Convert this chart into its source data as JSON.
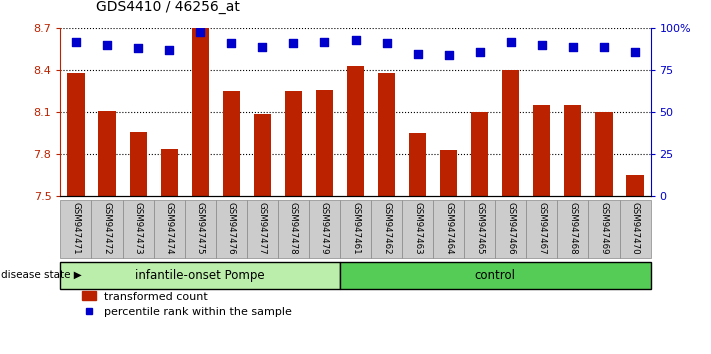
{
  "title": "GDS4410 / 46256_at",
  "samples": [
    "GSM947471",
    "GSM947472",
    "GSM947473",
    "GSM947474",
    "GSM947475",
    "GSM947476",
    "GSM947477",
    "GSM947478",
    "GSM947479",
    "GSM947461",
    "GSM947462",
    "GSM947463",
    "GSM947464",
    "GSM947465",
    "GSM947466",
    "GSM947467",
    "GSM947468",
    "GSM947469",
    "GSM947470"
  ],
  "bar_values": [
    8.38,
    8.11,
    7.96,
    7.84,
    8.7,
    8.25,
    8.09,
    8.25,
    8.26,
    8.43,
    8.38,
    7.95,
    7.83,
    8.1,
    8.4,
    8.15,
    8.15,
    8.1,
    7.65
  ],
  "percentile_values": [
    92,
    90,
    88,
    87,
    98,
    91,
    89,
    91,
    92,
    93,
    91,
    85,
    84,
    86,
    92,
    90,
    89,
    89,
    86
  ],
  "group1_label": "infantile-onset Pompe",
  "group2_label": "control",
  "group1_count": 9,
  "group2_count": 10,
  "ylim_left": [
    7.5,
    8.7
  ],
  "ylim_right": [
    0,
    100
  ],
  "yticks_left": [
    7.5,
    7.8,
    8.1,
    8.4,
    8.7
  ],
  "ytick_labels_left": [
    "7.5",
    "7.8",
    "8.1",
    "8.4",
    "8.7"
  ],
  "yticks_right": [
    0,
    25,
    50,
    75,
    100
  ],
  "ytick_labels_right": [
    "0",
    "25",
    "50",
    "75",
    "100%"
  ],
  "bar_color": "#bb2200",
  "dot_color": "#0000cc",
  "group1_bg": "#bbeeaa",
  "group2_bg": "#55cc55",
  "sample_bg": "#cccccc",
  "disease_state_label": "disease state",
  "legend_bar_label": "transformed count",
  "legend_dot_label": "percentile rank within the sample",
  "bar_width": 0.55,
  "dot_size": 40,
  "dot_marker": "s",
  "fig_width": 7.11,
  "fig_height": 3.54,
  "dpi": 100
}
